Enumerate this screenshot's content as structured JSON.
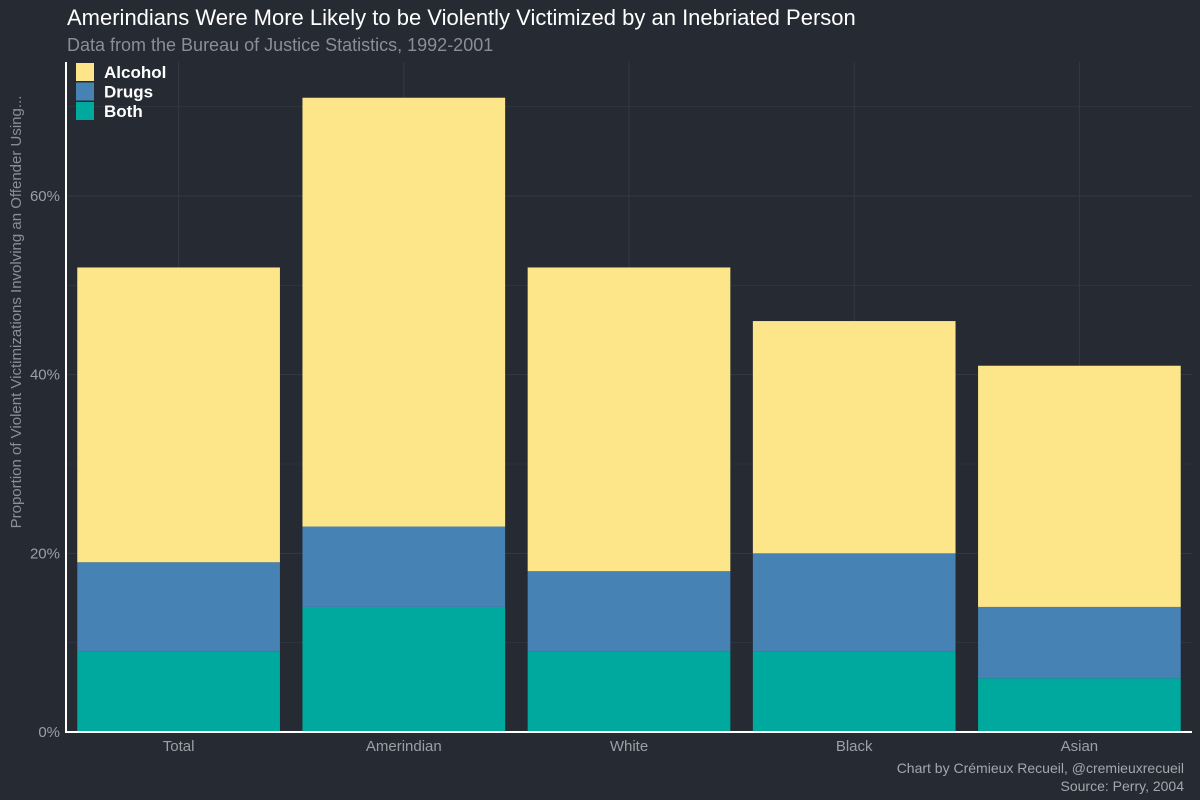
{
  "chart_data": {
    "type": "bar",
    "stacked": true,
    "title": "Amerindians Were More Likely to be Violently Victimized by an Inebriated Person",
    "subtitle": "Data from the Bureau of Justice Statistics, 1992-2001",
    "ylabel": "Proportion of Violent Victimizations Involving an Offender Using...",
    "xlabel": "",
    "categories": [
      "Total",
      "Amerindian",
      "White",
      "Black",
      "Asian"
    ],
    "series": [
      {
        "name": "Both",
        "color": "#00a99d",
        "values": [
          9,
          14,
          9,
          9,
          6
        ]
      },
      {
        "name": "Drugs",
        "color": "#4682b4",
        "values": [
          10,
          9,
          9,
          11,
          8
        ]
      },
      {
        "name": "Alcohol",
        "color": "#fde68a",
        "values": [
          33,
          48,
          34,
          26,
          27
        ]
      }
    ],
    "legend": {
      "position": "top-left",
      "order": [
        "Alcohol",
        "Drugs",
        "Both"
      ]
    },
    "ylim": [
      0,
      75
    ],
    "yticks": [
      0,
      20,
      40,
      60
    ],
    "ytick_labels": [
      "0%",
      "20%",
      "40%",
      "60%"
    ],
    "grid": true,
    "caption": [
      "Chart by Crémieux Recueil, @cremieuxrecueil",
      "Source: Perry, 2004"
    ]
  }
}
